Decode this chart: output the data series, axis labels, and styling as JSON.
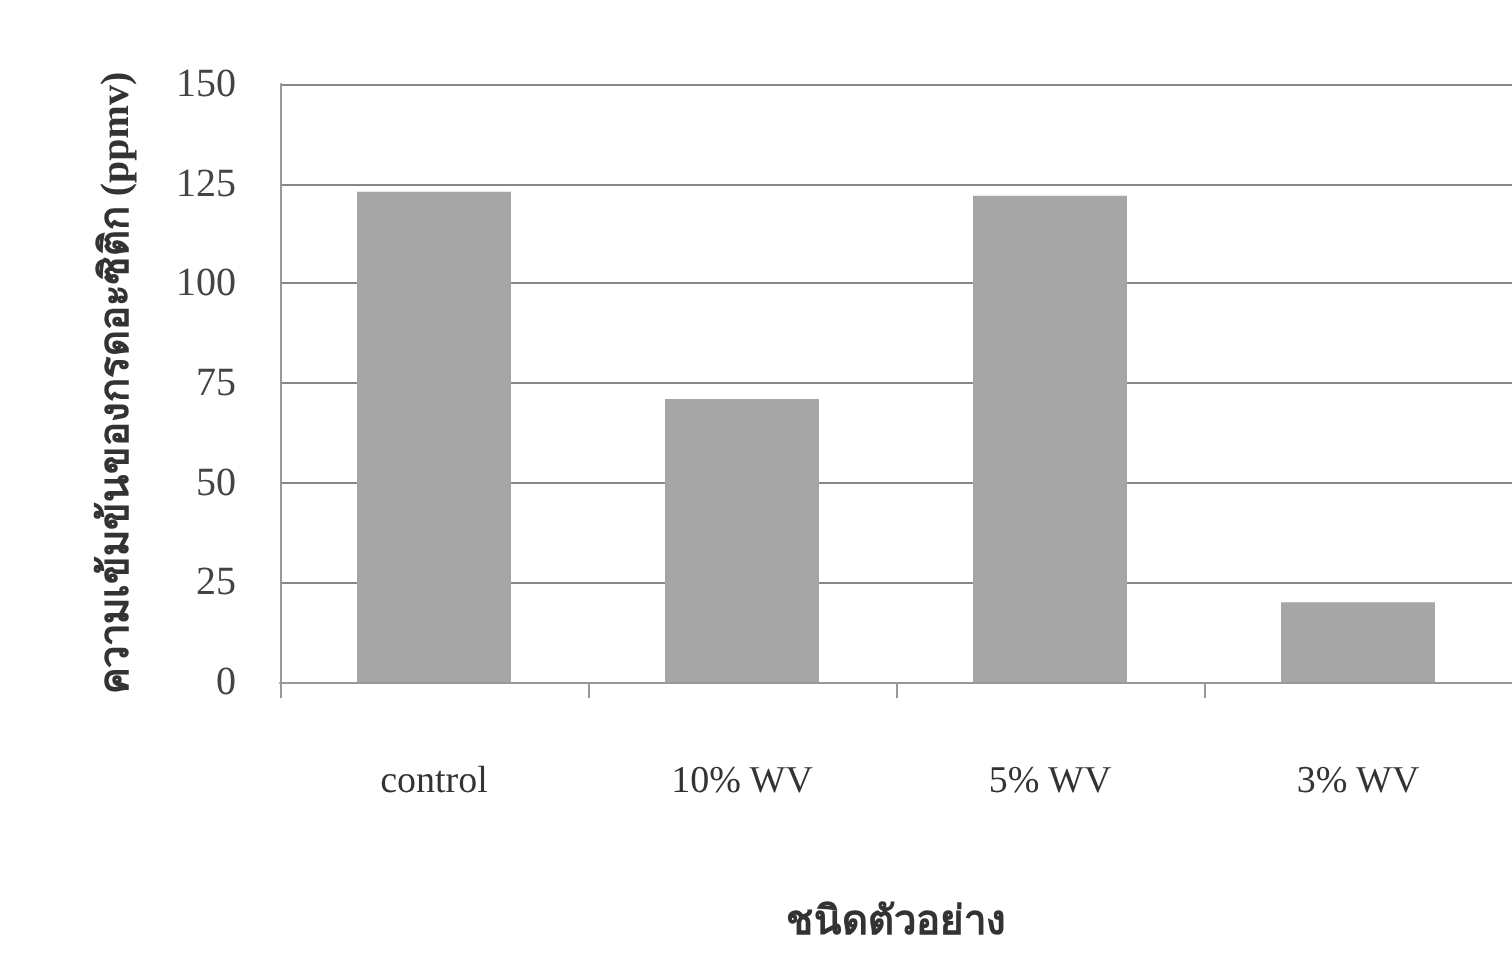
{
  "chart_data": {
    "type": "bar",
    "xlabel": "ชนิดตัวอย่าง",
    "ylabel": "ความเข้มข้นของกรดอะซิติก (ppmv)",
    "categories": [
      "control",
      "10% WV",
      "5% WV",
      "3% WV"
    ],
    "values": [
      123,
      71,
      122,
      20
    ],
    "color": "#a6a6a6",
    "ylim": [
      0,
      150
    ],
    "yticks": [
      0,
      25,
      50,
      75,
      100,
      125,
      150
    ],
    "grid": "y"
  }
}
